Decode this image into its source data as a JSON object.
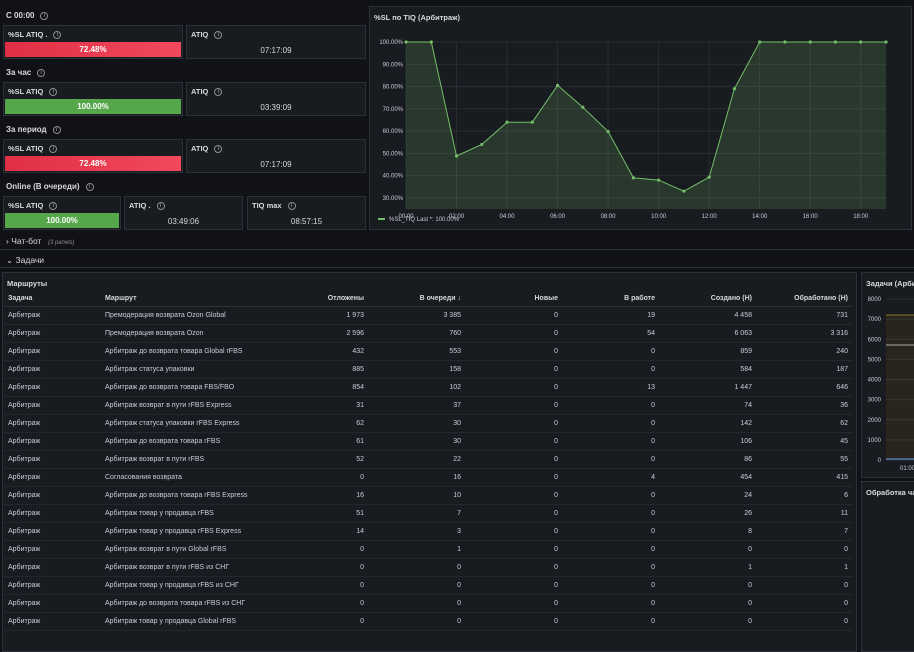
{
  "stats": {
    "s0000": {
      "title": "С 00:00",
      "sl": {
        "label": "%SL ATIQ .",
        "value": "72.48%",
        "color": "red"
      },
      "atiq": {
        "label": "ATIQ",
        "value": "07:17:09"
      }
    },
    "hour": {
      "title": "За час",
      "sl": {
        "label": "%SL ATIQ",
        "value": "100.00%",
        "color": "green"
      },
      "atiq": {
        "label": "ATIQ",
        "value": "03:39:09"
      }
    },
    "period": {
      "title": "За период",
      "sl": {
        "label": "%SL ATIQ",
        "value": "72.48%",
        "color": "red"
      },
      "atiq": {
        "label": "ATIQ",
        "value": "07:17:09"
      }
    },
    "online": {
      "title": "Online (В очереди)",
      "sl": {
        "label": "%SL ATIQ",
        "value": "100.00%",
        "color": "green"
      },
      "atiq": {
        "label": "ATIQ .",
        "value": "03:49:06"
      },
      "tiqmax": {
        "label": "TIQ max",
        "value": "08:57:15"
      }
    }
  },
  "rows": {
    "chatbot": {
      "label": "Чат-бот",
      "hint": "(3 panels)",
      "chevron": "›"
    },
    "tasks": {
      "label": "Задачи",
      "chevron": "⌄"
    }
  },
  "chart_panel": {
    "title": "%SL по TIQ (Арбитраж)",
    "legend": "%SL_TIQ  Last *: 100.00%"
  },
  "chart_data": {
    "type": "area",
    "title": "%SL по TIQ (Арбитраж)",
    "x": [
      "00:00",
      "01:00",
      "02:00",
      "03:00",
      "04:00",
      "05:00",
      "06:00",
      "07:00",
      "08:00",
      "09:00",
      "10:00",
      "11:00",
      "12:00",
      "13:00",
      "14:00",
      "15:00",
      "16:00",
      "17:00",
      "18:00",
      "19:00"
    ],
    "series": [
      {
        "name": "%SL_TIQ",
        "values": [
          100,
          100,
          48.8,
          54,
          64,
          64,
          80.5,
          70.7,
          59.8,
          39,
          38,
          33,
          39.3,
          79,
          100,
          100,
          100,
          100,
          100,
          100
        ]
      }
    ],
    "ylim": [
      25,
      100
    ],
    "yticks": [
      "100.00%",
      "90.00%",
      "80.00%",
      "70.00%",
      "60.00%",
      "50.00%",
      "40.00%",
      "30.00%"
    ],
    "xticks": [
      "00:00",
      "02:00",
      "04:00",
      "06:00",
      "08:00",
      "10:00",
      "12:00",
      "14:00",
      "16:00",
      "18:00"
    ],
    "grid": true,
    "legend": "bottom-left",
    "color": "#73bf69"
  },
  "routes": {
    "title": "Маршруты",
    "columns": [
      "Задача",
      "Маршрут",
      "Отложены",
      "В очереди ↓",
      "Новые",
      "В работе",
      "Создано (Н)",
      "Обработано (Н)"
    ],
    "rows": [
      [
        "Арбитраж",
        "Премодерация возврата Ozon Global",
        "1 973",
        "3 385",
        "0",
        "19",
        "4 458",
        "731"
      ],
      [
        "Арбитраж",
        "Премодерация возврата Ozon",
        "2 596",
        "760",
        "0",
        "54",
        "6 063",
        "3 316"
      ],
      [
        "Арбитраж",
        "Арбитраж до возврата товара Global rFBS",
        "432",
        "553",
        "0",
        "0",
        "859",
        "240"
      ],
      [
        "Арбитраж",
        "Арбитраж статуса упаковки",
        "885",
        "158",
        "0",
        "0",
        "584",
        "187"
      ],
      [
        "Арбитраж",
        "Арбитраж до возврата товара FBS/FBO",
        "854",
        "102",
        "0",
        "13",
        "1 447",
        "646"
      ],
      [
        "Арбитраж",
        "Арбитраж возврат в пути rFBS Express",
        "31",
        "37",
        "0",
        "0",
        "74",
        "36"
      ],
      [
        "Арбитраж",
        "Арбитраж статуса упаковки rFBS Express",
        "62",
        "30",
        "0",
        "0",
        "142",
        "62"
      ],
      [
        "Арбитраж",
        "Арбитраж до возврата товара rFBS",
        "61",
        "30",
        "0",
        "0",
        "106",
        "45"
      ],
      [
        "Арбитраж",
        "Арбитраж возврат в пути rFBS",
        "52",
        "22",
        "0",
        "0",
        "86",
        "55"
      ],
      [
        "Арбитраж",
        "Согласования возврата",
        "0",
        "16",
        "0",
        "4",
        "454",
        "415"
      ],
      [
        "Арбитраж",
        "Арбитраж до возврата товара rFBS Express",
        "16",
        "10",
        "0",
        "0",
        "24",
        "6"
      ],
      [
        "Арбитраж",
        "Арбитраж товар у продавца rFBS",
        "51",
        "7",
        "0",
        "0",
        "26",
        "11"
      ],
      [
        "Арбитраж",
        "Арбитраж товар у продавца rFBS Express",
        "14",
        "3",
        "0",
        "0",
        "8",
        "7"
      ],
      [
        "Арбитраж",
        "Арбитраж возврат в пути Global rFBS",
        "0",
        "1",
        "0",
        "0",
        "0",
        "0"
      ],
      [
        "Арбитраж",
        "Арбитраж возврат в пути rFBS из СНГ",
        "0",
        "0",
        "0",
        "0",
        "1",
        "1"
      ],
      [
        "Арбитраж",
        "Арбитраж товар у продавца rFBS из СНГ",
        "0",
        "0",
        "0",
        "0",
        "0",
        "0"
      ],
      [
        "Арбитраж",
        "Арбитраж до возврата товара rFBS из СНГ",
        "0",
        "0",
        "0",
        "0",
        "0",
        "0"
      ],
      [
        "Арбитраж",
        "Арбитраж товар у продавца Global rFBS",
        "0",
        "0",
        "0",
        "0",
        "0",
        "0"
      ]
    ]
  },
  "right_panels": {
    "tasks": {
      "title": "Задачи (Арби",
      "yticks": [
        "8000",
        "7000",
        "6000",
        "5000",
        "4000",
        "3000",
        "2000",
        "1000",
        "0"
      ],
      "xtick": "01:00"
    },
    "processing": {
      "title": "Обработка ча"
    }
  }
}
